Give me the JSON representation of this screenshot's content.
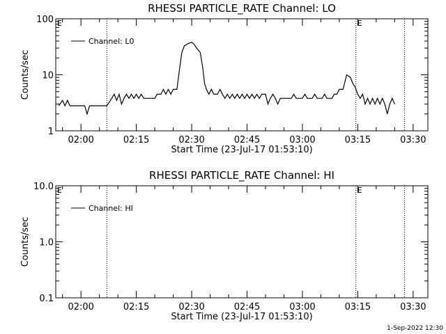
{
  "footer": {
    "date_stamp": "1-Sep-2022 12:30"
  },
  "chart_data": [
    {
      "type": "line",
      "title": "RHESSI PARTICLE_RATE Channel: LO",
      "xlabel": "Start Time (23-Jul-17 01:53:10)",
      "ylabel": "Counts/sec",
      "yscale": "log",
      "ylim": [
        1,
        100
      ],
      "yticks": [
        "1",
        "10",
        "100"
      ],
      "xlim": [
        "01:53:10",
        "03:34:00"
      ],
      "xticks": [
        "02:00",
        "02:15",
        "02:30",
        "02:45",
        "03:00",
        "03:15",
        "03:30"
      ],
      "legend_position": "top-left",
      "grid": false,
      "markers": [
        {
          "time": "03:14:30",
          "label": "E"
        },
        {
          "time": "01:53:10",
          "label": "E"
        }
      ],
      "vlines": [
        "02:07:00",
        "03:14:30",
        "03:27:40"
      ],
      "series": [
        {
          "name": "Channel: L0",
          "color": "#000000",
          "points": [
            [
              "01:54:00",
              2.8
            ],
            [
              "01:55:00",
              3.5
            ],
            [
              "01:55:40",
              2.8
            ],
            [
              "01:56:20",
              3.5
            ],
            [
              "01:57:00",
              2.8
            ],
            [
              "02:01:00",
              2.8
            ],
            [
              "02:01:40",
              2.0
            ],
            [
              "02:02:20",
              2.8
            ],
            [
              "02:07:00",
              2.8
            ],
            [
              "02:08:00",
              3.5
            ],
            [
              "02:09:00",
              4.5
            ],
            [
              "02:09:40",
              3.5
            ],
            [
              "02:10:20",
              4.5
            ],
            [
              "02:11:00",
              3.0
            ],
            [
              "02:11:40",
              3.8
            ],
            [
              "02:12:20",
              4.5
            ],
            [
              "02:13:00",
              3.8
            ],
            [
              "02:13:40",
              4.5
            ],
            [
              "02:14:20",
              3.8
            ],
            [
              "02:15:00",
              4.5
            ],
            [
              "02:15:40",
              3.8
            ],
            [
              "02:16:20",
              4.5
            ],
            [
              "02:17:00",
              3.8
            ],
            [
              "02:20:00",
              3.8
            ],
            [
              "02:20:40",
              4.5
            ],
            [
              "02:21:40",
              4.5
            ],
            [
              "02:22:20",
              5.5
            ],
            [
              "02:23:00",
              4.5
            ],
            [
              "02:23:40",
              5.5
            ],
            [
              "02:24:20",
              4.5
            ],
            [
              "02:25:00",
              5.5
            ],
            [
              "02:26:00",
              5.5
            ],
            [
              "02:26:40",
              12.0
            ],
            [
              "02:27:20",
              25.0
            ],
            [
              "02:28:00",
              33.0
            ],
            [
              "02:29:00",
              36.0
            ],
            [
              "02:30:00",
              38.0
            ],
            [
              "02:30:40",
              35.0
            ],
            [
              "02:31:20",
              30.0
            ],
            [
              "02:32:20",
              25.0
            ],
            [
              "02:33:00",
              13.0
            ],
            [
              "02:33:30",
              7.0
            ],
            [
              "02:34:00",
              5.5
            ],
            [
              "02:34:40",
              4.5
            ],
            [
              "02:35:20",
              5.5
            ],
            [
              "02:36:00",
              4.5
            ],
            [
              "02:37:00",
              4.5
            ],
            [
              "02:37:40",
              5.5
            ],
            [
              "02:38:20",
              4.5
            ],
            [
              "02:39:00",
              3.8
            ],
            [
              "02:39:40",
              4.5
            ],
            [
              "02:40:20",
              3.8
            ],
            [
              "02:41:00",
              4.5
            ],
            [
              "02:41:40",
              3.8
            ],
            [
              "02:42:20",
              4.5
            ],
            [
              "02:43:00",
              3.8
            ],
            [
              "02:43:40",
              4.5
            ],
            [
              "02:44:20",
              3.8
            ],
            [
              "02:45:00",
              4.5
            ],
            [
              "02:45:40",
              3.8
            ],
            [
              "02:46:20",
              4.5
            ],
            [
              "02:47:00",
              3.8
            ],
            [
              "02:47:40",
              4.5
            ],
            [
              "02:48:20",
              3.8
            ],
            [
              "02:49:00",
              4.5
            ],
            [
              "02:50:00",
              4.5
            ],
            [
              "02:50:40",
              3.0
            ],
            [
              "02:51:20",
              3.8
            ],
            [
              "02:52:00",
              4.5
            ],
            [
              "02:52:40",
              3.8
            ],
            [
              "02:53:20",
              3.0
            ],
            [
              "02:54:00",
              3.8
            ],
            [
              "02:57:00",
              3.8
            ],
            [
              "02:57:40",
              4.5
            ],
            [
              "02:58:20",
              3.8
            ],
            [
              "03:00:00",
              3.8
            ],
            [
              "03:00:40",
              4.5
            ],
            [
              "03:01:20",
              3.8
            ],
            [
              "03:02:40",
              3.8
            ],
            [
              "03:03:20",
              4.5
            ],
            [
              "03:04:00",
              3.8
            ],
            [
              "03:05:20",
              3.8
            ],
            [
              "03:06:00",
              4.5
            ],
            [
              "03:06:40",
              3.8
            ],
            [
              "03:08:00",
              3.8
            ],
            [
              "03:08:40",
              4.5
            ],
            [
              "03:09:20",
              4.5
            ],
            [
              "03:10:00",
              5.5
            ],
            [
              "03:11:00",
              5.5
            ],
            [
              "03:12:00",
              10.0
            ],
            [
              "03:13:00",
              9.0
            ],
            [
              "03:13:40",
              7.0
            ],
            [
              "03:14:20",
              6.0
            ],
            [
              "03:15:00",
              4.5
            ],
            [
              "03:15:40",
              3.8
            ],
            [
              "03:16:20",
              4.5
            ],
            [
              "03:17:00",
              3.0
            ],
            [
              "03:17:40",
              3.8
            ],
            [
              "03:18:20",
              3.0
            ],
            [
              "03:19:00",
              3.8
            ],
            [
              "03:19:40",
              3.0
            ],
            [
              "03:20:20",
              3.8
            ],
            [
              "03:21:00",
              3.0
            ],
            [
              "03:21:40",
              3.8
            ],
            [
              "03:22:20",
              3.0
            ],
            [
              "03:23:00",
              2.0
            ],
            [
              "03:23:40",
              3.0
            ],
            [
              "03:24:20",
              3.8
            ],
            [
              "03:25:00",
              3.0
            ]
          ]
        }
      ]
    },
    {
      "type": "line",
      "title": "RHESSI PARTICLE_RATE Channel: HI",
      "xlabel": "Start Time (23-Jul-17 01:53:10)",
      "ylabel": "Counts/sec",
      "yscale": "log",
      "ylim": [
        0.1,
        10
      ],
      "yticks": [
        "0.1",
        "1.0",
        "10.0"
      ],
      "xlim": [
        "01:53:10",
        "03:34:00"
      ],
      "xticks": [
        "02:00",
        "02:15",
        "02:30",
        "02:45",
        "03:00",
        "03:15",
        "03:30"
      ],
      "legend_position": "top-left",
      "grid": false,
      "markers": [
        {
          "time": "03:14:30",
          "label": "E"
        },
        {
          "time": "01:53:10",
          "label": "E"
        }
      ],
      "vlines": [
        "02:07:00",
        "03:14:30",
        "03:27:40"
      ],
      "series": [
        {
          "name": "Channel: HI",
          "color": "#000000",
          "points": []
        }
      ]
    }
  ]
}
